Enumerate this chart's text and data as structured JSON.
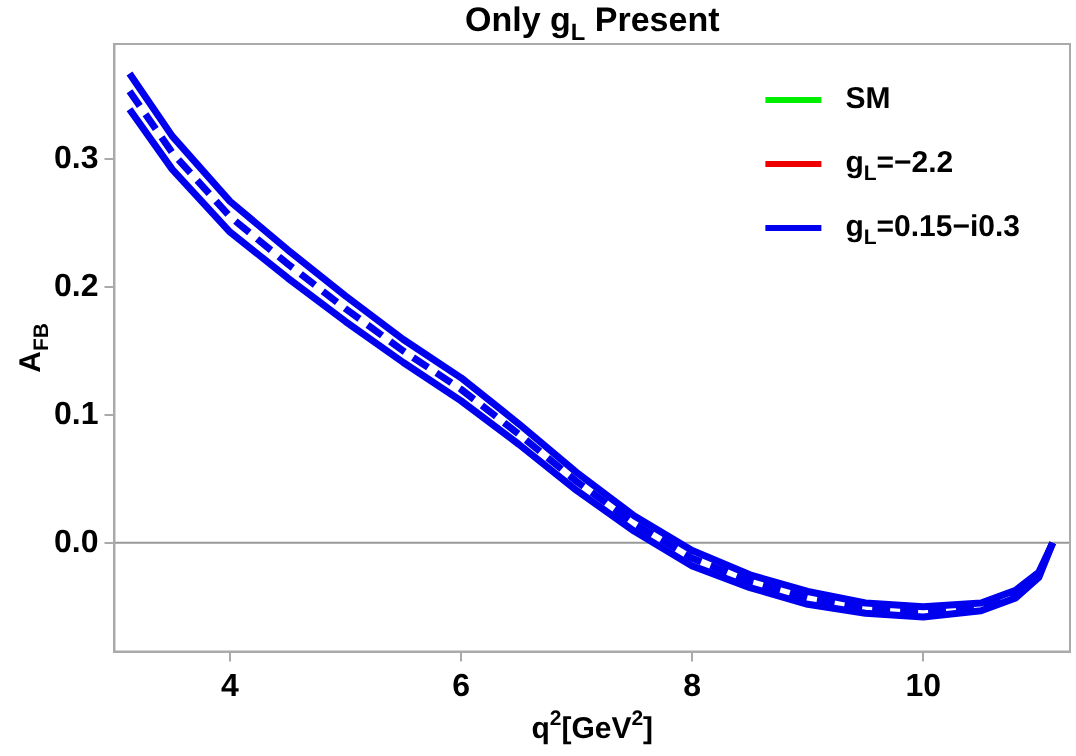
{
  "chart_data": {
    "type": "line",
    "title": "Only g$_{L}$ Present",
    "xlabel": "q$^{2}$[GeV$^{2}$]",
    "ylabel": "A$_{FB}$",
    "x": [
      3.13,
      3.5,
      4,
      4.5,
      5,
      5.5,
      6,
      6.5,
      7,
      7.5,
      8,
      8.5,
      9,
      9.5,
      10,
      10.5,
      10.8,
      11,
      11.12
    ],
    "xlim": [
      3.0,
      11.27
    ],
    "ylim": [
      -0.085,
      0.39
    ],
    "xticks": [
      4,
      6,
      8,
      10
    ],
    "yticks": [
      {
        "value": 0,
        "label": "0.0"
      },
      0.1,
      0.2,
      0.3
    ],
    "grid": false,
    "legend": "top right",
    "marker": "none",
    "ref_lines": [
      {
        "axis": "y",
        "value": 0,
        "color": "#999999"
      }
    ],
    "series": [
      {
        "name": "SM",
        "color": "#00ee00",
        "values": [
          null,
          null,
          null,
          null,
          null,
          null,
          null,
          null,
          null,
          null,
          null,
          null,
          null,
          null,
          null,
          null,
          null,
          null,
          null
        ]
      },
      {
        "name": "g$_{L}$=−2.2",
        "color": "#ee0000",
        "values": [
          null,
          null,
          null,
          null,
          null,
          null,
          null,
          null,
          null,
          null,
          null,
          null,
          null,
          null,
          null,
          null,
          null,
          null,
          null
        ]
      },
      {
        "name": "g$_{L}$=0.15−i0.3",
        "color": "#0000ee",
        "line_style": "solid",
        "values": [
          0.367,
          0.318,
          0.267,
          0.229,
          0.193,
          0.159,
          0.129,
          0.093,
          0.055,
          0.021,
          -0.006,
          -0.025,
          -0.038,
          -0.047,
          -0.05,
          -0.047,
          -0.037,
          -0.023,
          0
        ]
      },
      {
        "color": "#0000ee",
        "line_style": "solid",
        "values": [
          0.339,
          0.292,
          0.243,
          0.207,
          0.173,
          0.141,
          0.111,
          0.077,
          0.041,
          0.009,
          -0.018,
          -0.035,
          -0.048,
          -0.055,
          -0.058,
          -0.053,
          -0.043,
          -0.027,
          0
        ]
      },
      {
        "color": "#0000ee",
        "line_style": "dashed",
        "values": [
          0.353,
          0.305,
          0.255,
          0.218,
          0.183,
          0.15,
          0.12,
          0.085,
          0.048,
          0.015,
          -0.012,
          -0.03,
          -0.043,
          -0.051,
          -0.054,
          -0.05,
          -0.04,
          -0.025,
          0
        ]
      }
    ]
  }
}
